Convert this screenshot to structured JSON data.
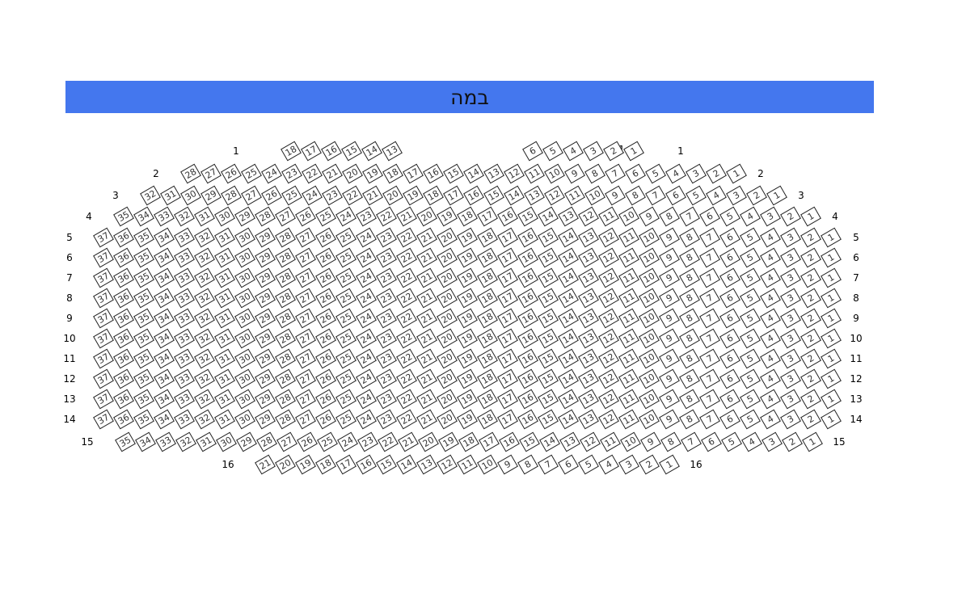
{
  "stage": {
    "label": "במה",
    "color": "#4477ee"
  },
  "rows": [
    {
      "label": "1",
      "sections": [
        [
          18,
          13
        ],
        [
          6,
          1
        ]
      ],
      "extra_label": "1"
    },
    {
      "label": "2",
      "sections": [
        [
          28,
          1
        ]
      ]
    },
    {
      "label": "3",
      "sections": [
        [
          32,
          1
        ]
      ]
    },
    {
      "label": "4",
      "sections": [
        [
          35,
          1
        ]
      ]
    },
    {
      "label": "5",
      "sections": [
        [
          37,
          1
        ]
      ]
    },
    {
      "label": "6",
      "sections": [
        [
          37,
          1
        ]
      ]
    },
    {
      "label": "7",
      "sections": [
        [
          37,
          1
        ]
      ]
    },
    {
      "label": "8",
      "sections": [
        [
          37,
          1
        ]
      ]
    },
    {
      "label": "9",
      "sections": [
        [
          37,
          1
        ]
      ]
    },
    {
      "label": "10",
      "sections": [
        [
          37,
          1
        ]
      ]
    },
    {
      "label": "11",
      "sections": [
        [
          37,
          1
        ]
      ]
    },
    {
      "label": "12",
      "sections": [
        [
          37,
          1
        ]
      ]
    },
    {
      "label": "13",
      "sections": [
        [
          37,
          1
        ]
      ]
    },
    {
      "label": "14",
      "sections": [
        [
          37,
          1
        ]
      ]
    },
    {
      "label": "15",
      "sections": [
        [
          35,
          1
        ]
      ]
    },
    {
      "label": "16",
      "sections": [
        [
          21,
          1
        ]
      ]
    }
  ]
}
